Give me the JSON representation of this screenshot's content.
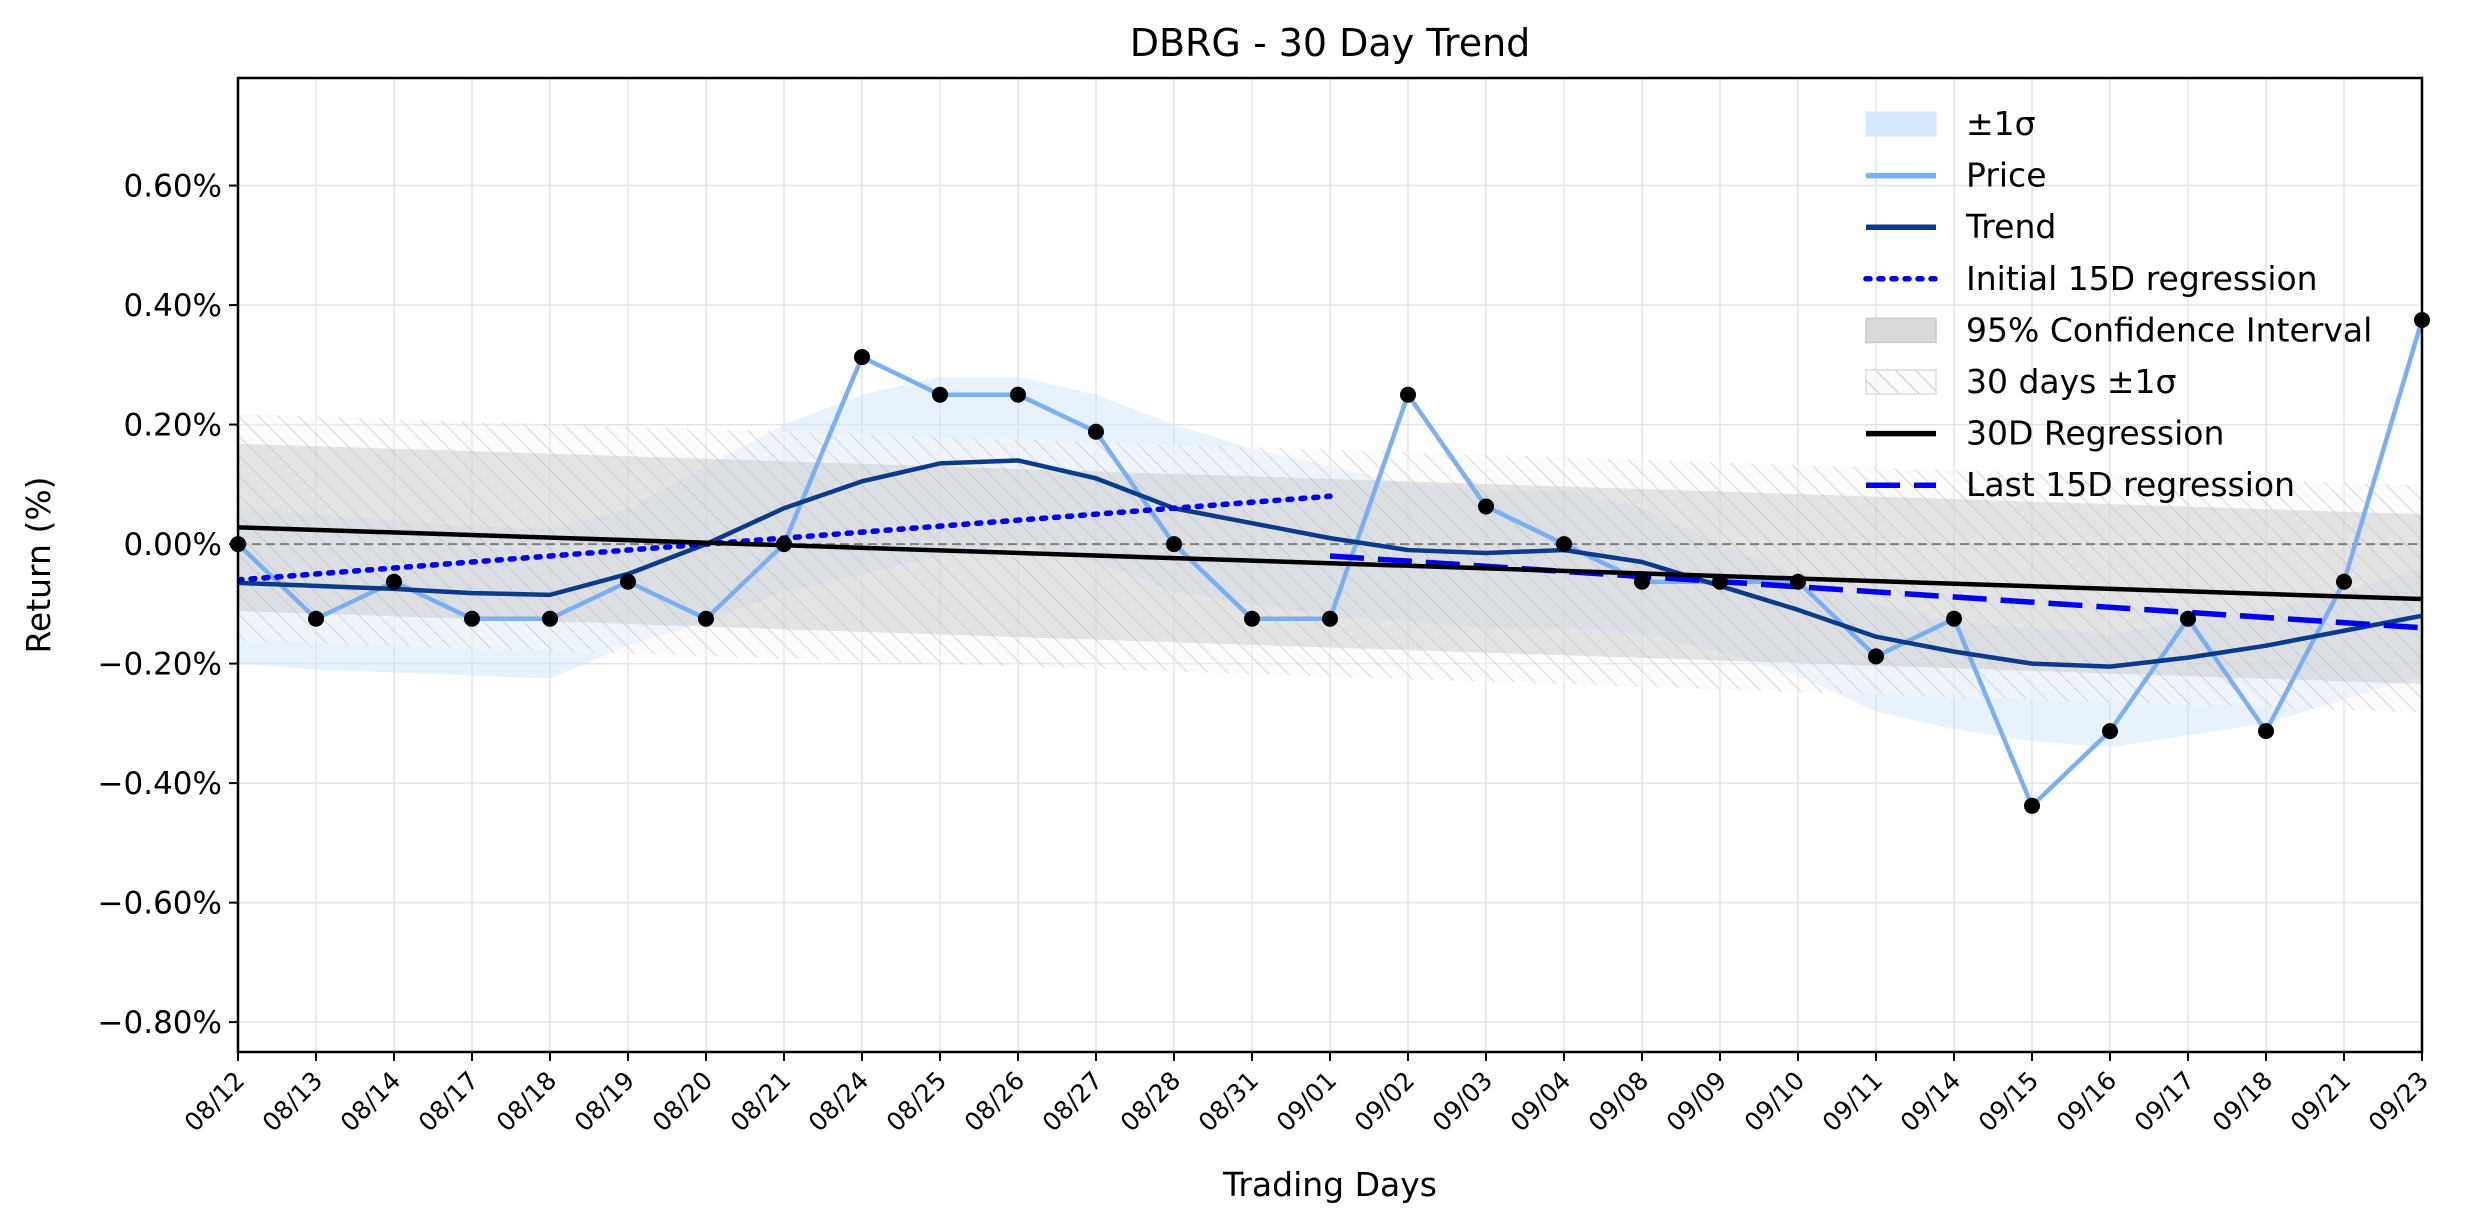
{
  "chart_data": {
    "type": "line",
    "title": "DBRG - 30 Day Trend",
    "xlabel": "Trading Days",
    "ylabel": "Return (%)",
    "ylim": [
      -0.85,
      0.78
    ],
    "yticks": [
      -0.8,
      -0.6,
      -0.4,
      -0.2,
      0.0,
      0.2,
      0.4,
      0.6
    ],
    "ytick_labels": [
      "−0.80%",
      "−0.60%",
      "−0.40%",
      "−0.20%",
      "0.00%",
      "0.20%",
      "0.40%",
      "0.60%"
    ],
    "grid": true,
    "legend_position": "top-right",
    "categories": [
      "08/12",
      "08/13",
      "08/14",
      "08/17",
      "08/18",
      "08/19",
      "08/20",
      "08/21",
      "08/24",
      "08/25",
      "08/26",
      "08/27",
      "08/28",
      "08/31",
      "09/01",
      "09/02",
      "09/03",
      "09/04",
      "09/08",
      "09/09",
      "09/10",
      "09/11",
      "09/14",
      "09/15",
      "09/16",
      "09/17",
      "09/18",
      "09/21",
      "09/23"
    ],
    "series": [
      {
        "name": "Price",
        "color": "#7ab0f2",
        "style": "line-markers",
        "values": [
          0.0,
          -0.125,
          -0.063,
          -0.125,
          -0.125,
          -0.063,
          -0.125,
          0.0,
          0.313,
          0.25,
          0.25,
          0.188,
          0.0,
          -0.125,
          -0.125,
          0.25,
          0.063,
          0.0,
          -0.063,
          -0.063,
          -0.063,
          -0.188,
          -0.125,
          -0.438,
          -0.313,
          -0.125,
          -0.313,
          -0.063,
          0.375
        ]
      },
      {
        "name": "Trend",
        "color": "#0b3a8a",
        "style": "line",
        "values": [
          -0.065,
          -0.07,
          -0.075,
          -0.082,
          -0.085,
          -0.05,
          0.0,
          0.06,
          0.105,
          0.135,
          0.14,
          0.11,
          0.06,
          0.035,
          0.01,
          -0.01,
          -0.015,
          -0.01,
          -0.03,
          -0.07,
          -0.11,
          -0.155,
          -0.18,
          -0.2,
          -0.205,
          -0.19,
          -0.17,
          -0.145,
          -0.12
        ]
      },
      {
        "name": "Initial 15D regression",
        "color": "#0000ee",
        "style": "dotted",
        "x_range": [
          0,
          14
        ],
        "y_range": [
          -0.06,
          0.08
        ]
      },
      {
        "name": "Last 15D regression",
        "color": "#0000ee",
        "style": "dashed",
        "x_range": [
          14,
          28
        ],
        "y_range": [
          -0.02,
          -0.14
        ]
      },
      {
        "name": "30D Regression",
        "color": "#000000",
        "style": "line",
        "x_range": [
          0,
          28
        ],
        "y_range": [
          0.028,
          -0.092
        ]
      }
    ],
    "bands": [
      {
        "name": "±1σ",
        "color": "#d6e8fc",
        "upper": [
          0.06,
          0.05,
          0.04,
          0.03,
          0.025,
          0.06,
          0.13,
          0.2,
          0.25,
          0.28,
          0.28,
          0.25,
          0.2,
          0.16,
          0.13,
          0.1,
          0.09,
          0.09,
          0.06,
          0.0,
          -0.05,
          -0.1,
          -0.13,
          -0.14,
          -0.15,
          -0.13,
          -0.11,
          -0.08,
          -0.04
        ],
        "lower": [
          -0.2,
          -0.21,
          -0.215,
          -0.22,
          -0.225,
          -0.17,
          -0.13,
          -0.08,
          -0.05,
          -0.02,
          0.0,
          -0.03,
          -0.08,
          -0.1,
          -0.12,
          -0.13,
          -0.14,
          -0.14,
          -0.15,
          -0.18,
          -0.22,
          -0.28,
          -0.31,
          -0.33,
          -0.34,
          -0.32,
          -0.3,
          -0.26,
          -0.22
        ]
      },
      {
        "name": "95% Confidence Interval",
        "color": "#b8b8b8",
        "upper_range": [
          0.168,
          0.05
        ],
        "lower_range": [
          -0.112,
          -0.234
        ]
      },
      {
        "name": "30 days ±1σ",
        "color": "#cfcfcf",
        "hatch": true,
        "upper_range": [
          0.218,
          0.098
        ],
        "lower_range": [
          -0.162,
          -0.282
        ]
      }
    ],
    "reference_lines": [
      {
        "y": 0.0,
        "color": "#808080",
        "style": "dashed"
      }
    ],
    "legend": [
      {
        "label": "±1σ",
        "kind": "patch",
        "color": "#d6e8fc"
      },
      {
        "label": "Price",
        "kind": "line",
        "color": "#7ab0f2",
        "dash": "solid"
      },
      {
        "label": "Trend",
        "kind": "line",
        "color": "#0b3a8a",
        "dash": "solid"
      },
      {
        "label": "Initial 15D regression",
        "kind": "line",
        "color": "#0000ee",
        "dash": "dotted"
      },
      {
        "label": "95% Confidence Interval",
        "kind": "patch",
        "color": "#d9d9d9"
      },
      {
        "label": "30 days ±1σ",
        "kind": "hatch",
        "color": "#e6e6e6"
      },
      {
        "label": "30D Regression",
        "kind": "line",
        "color": "#000000",
        "dash": "solid"
      },
      {
        "label": "Last 15D regression",
        "kind": "line",
        "color": "#0000ee",
        "dash": "dashed"
      }
    ]
  }
}
